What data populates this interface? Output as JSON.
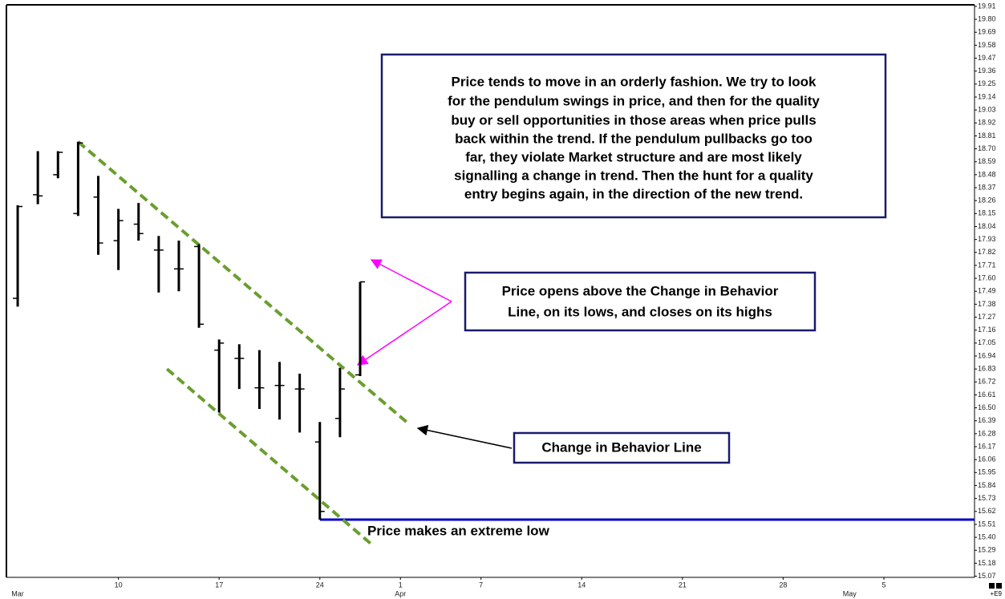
{
  "chart_data": {
    "type": "ohlc",
    "categories": [
      null,
      null,
      null,
      null,
      null,
      null,
      null,
      null,
      null,
      null,
      null,
      null,
      null,
      null,
      null,
      null,
      null,
      null
    ],
    "open": [
      17.43,
      18.31,
      18.48,
      18.15,
      18.29,
      17.92,
      18.06,
      17.84,
      17.68,
      17.87,
      16.99,
      16.92,
      16.67,
      16.69,
      16.66,
      16.21,
      16.41,
      16.78
    ],
    "high": [
      18.22,
      18.68,
      18.68,
      18.76,
      18.47,
      18.19,
      18.24,
      17.96,
      17.92,
      17.89,
      17.08,
      17.04,
      16.99,
      16.89,
      16.79,
      16.38,
      16.84,
      17.57
    ],
    "low": [
      17.36,
      18.23,
      18.45,
      18.13,
      17.8,
      17.67,
      17.92,
      17.48,
      17.49,
      17.18,
      16.46,
      16.66,
      16.49,
      16.4,
      16.29,
      15.55,
      16.25,
      16.77
    ],
    "close": [
      18.21,
      18.3,
      18.67,
      18.75,
      17.9,
      18.09,
      17.98,
      17.84,
      17.68,
      17.21,
      17.05,
      16.92,
      16.67,
      16.69,
      16.66,
      15.62,
      16.66,
      17.57
    ],
    "color": "#000000",
    "xlim": [
      -0.48,
      47.5
    ],
    "xticks": [
      {
        "value": 5,
        "label": "10"
      },
      {
        "value": 10,
        "label": "17"
      },
      {
        "value": 15,
        "label": "24"
      },
      {
        "value": 19,
        "label": "1"
      },
      {
        "value": 23,
        "label": "7"
      },
      {
        "value": 28,
        "label": "14"
      },
      {
        "value": 33,
        "label": "21"
      },
      {
        "value": 38,
        "label": "28"
      },
      {
        "value": 43,
        "label": "5"
      }
    ],
    "month_ticks": [
      {
        "value": 0,
        "label": "Mar"
      },
      {
        "value": 19,
        "label": "Apr"
      },
      {
        "value": 41.3,
        "label": "May"
      }
    ],
    "ylim": [
      15.06,
      19.93
    ],
    "yticks": [
      19.91,
      {
        "value": 19.8,
        "label": "19.80"
      },
      19.69,
      19.58,
      19.47,
      19.36,
      19.25,
      19.14,
      19.03,
      18.92,
      18.81,
      {
        "value": 18.7,
        "label": "18.70"
      },
      18.59,
      18.48,
      18.37,
      18.26,
      18.15,
      18.04,
      17.93,
      17.82,
      17.71,
      {
        "value": 17.6,
        "label": "17.60"
      },
      17.49,
      17.38,
      17.27,
      17.16,
      17.05,
      16.94,
      16.83,
      16.72,
      16.61,
      {
        "value": 16.5,
        "label": "16.50"
      },
      16.39,
      16.28,
      16.17,
      16.06,
      15.95,
      15.84,
      15.73,
      15.62,
      15.51,
      {
        "value": 15.4,
        "label": "15.40"
      },
      15.29,
      15.18,
      15.07
    ],
    "hline": {
      "value": 15.55,
      "from_x": 15,
      "color": "#0000cc"
    },
    "trend_lines": [
      {
        "x": [
          3,
          19.44
        ],
        "y": [
          18.76,
          16.36
        ],
        "color": "#6a9e2f"
      },
      {
        "x": [
          7.41,
          17.57
        ],
        "y": [
          16.83,
          15.34
        ],
        "color": "#6a9e2f"
      }
    ],
    "annotations": {
      "main_note": [
        "Price tends to move in an orderly fashion. We try to look",
        "for the pendulum swings in price, and then for the quality",
        "buy or sell opportunities in those areas when price pulls",
        "back within the trend. If the pendulum pullbacks go too",
        "far, they violate Market structure and are most likely",
        "signalling a change in trend. Then the hunt for a quality",
        "entry begins again, in the direction of the new trend."
      ],
      "open_note": [
        "Price opens above the Change in Behavior",
        "Line, on its lows, and closes on its highs"
      ],
      "line_note": "Change in Behavior Line",
      "low_note": "Price makes an extreme low",
      "corner_label": "+E9"
    }
  }
}
